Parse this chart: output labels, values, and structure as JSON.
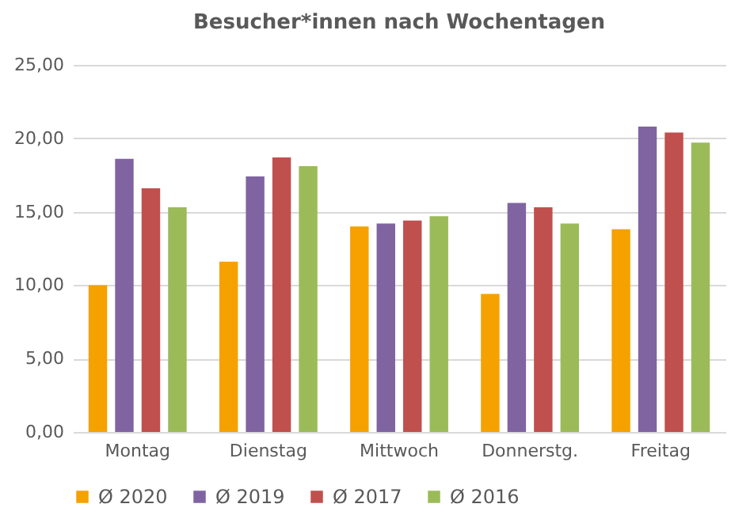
{
  "chart_data": {
    "type": "bar",
    "title": "Besucher*innen nach Wochentagen",
    "categories": [
      "Montag",
      "Dienstag",
      "Mittwoch",
      "Donnerstg.",
      "Freitag"
    ],
    "series": [
      {
        "name": "Ø 2020",
        "color": "#f5a100",
        "values": [
          10.0,
          11.6,
          14.0,
          9.4,
          13.8
        ]
      },
      {
        "name": "Ø 2019",
        "color": "#8064a2",
        "values": [
          18.6,
          17.4,
          14.2,
          15.6,
          20.8
        ]
      },
      {
        "name": "Ø 2017",
        "color": "#c0504d",
        "values": [
          16.6,
          18.7,
          14.4,
          15.3,
          20.4
        ]
      },
      {
        "name": "Ø 2016",
        "color": "#9bbb59",
        "values": [
          15.3,
          18.1,
          14.7,
          14.2,
          19.7
        ]
      }
    ],
    "ylim": [
      0,
      25
    ],
    "yticks": [
      {
        "value": 0,
        "label": "0,00"
      },
      {
        "value": 5,
        "label": "5,00"
      },
      {
        "value": 10,
        "label": "10,00"
      },
      {
        "value": 15,
        "label": "15,00"
      },
      {
        "value": 20,
        "label": "20,00"
      },
      {
        "value": 25,
        "label": "25,00"
      }
    ],
    "grid": "y",
    "legend": "bottom"
  }
}
